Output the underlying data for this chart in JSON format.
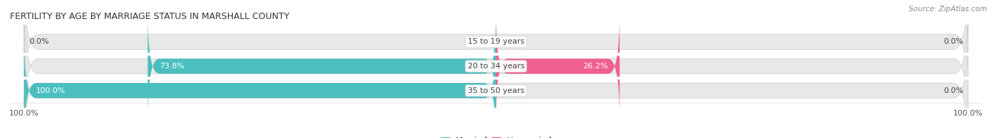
{
  "title": "FERTILITY BY AGE BY MARRIAGE STATUS IN MARSHALL COUNTY",
  "source": "Source: ZipAtlas.com",
  "categories": [
    "15 to 19 years",
    "20 to 34 years",
    "35 to 50 years"
  ],
  "married": [
    0.0,
    73.8,
    100.0
  ],
  "unmarried": [
    0.0,
    26.2,
    0.0
  ],
  "married_color": "#4bbfbf",
  "unmarried_color": "#f06090",
  "bar_bg_color": "#e8e8e8",
  "bar_height": 0.62,
  "xlim": 100.0,
  "title_fontsize": 9,
  "label_fontsize": 8,
  "tick_fontsize": 8,
  "source_fontsize": 7.5,
  "legend_fontsize": 8.5,
  "row_gap_color": "#ffffff"
}
